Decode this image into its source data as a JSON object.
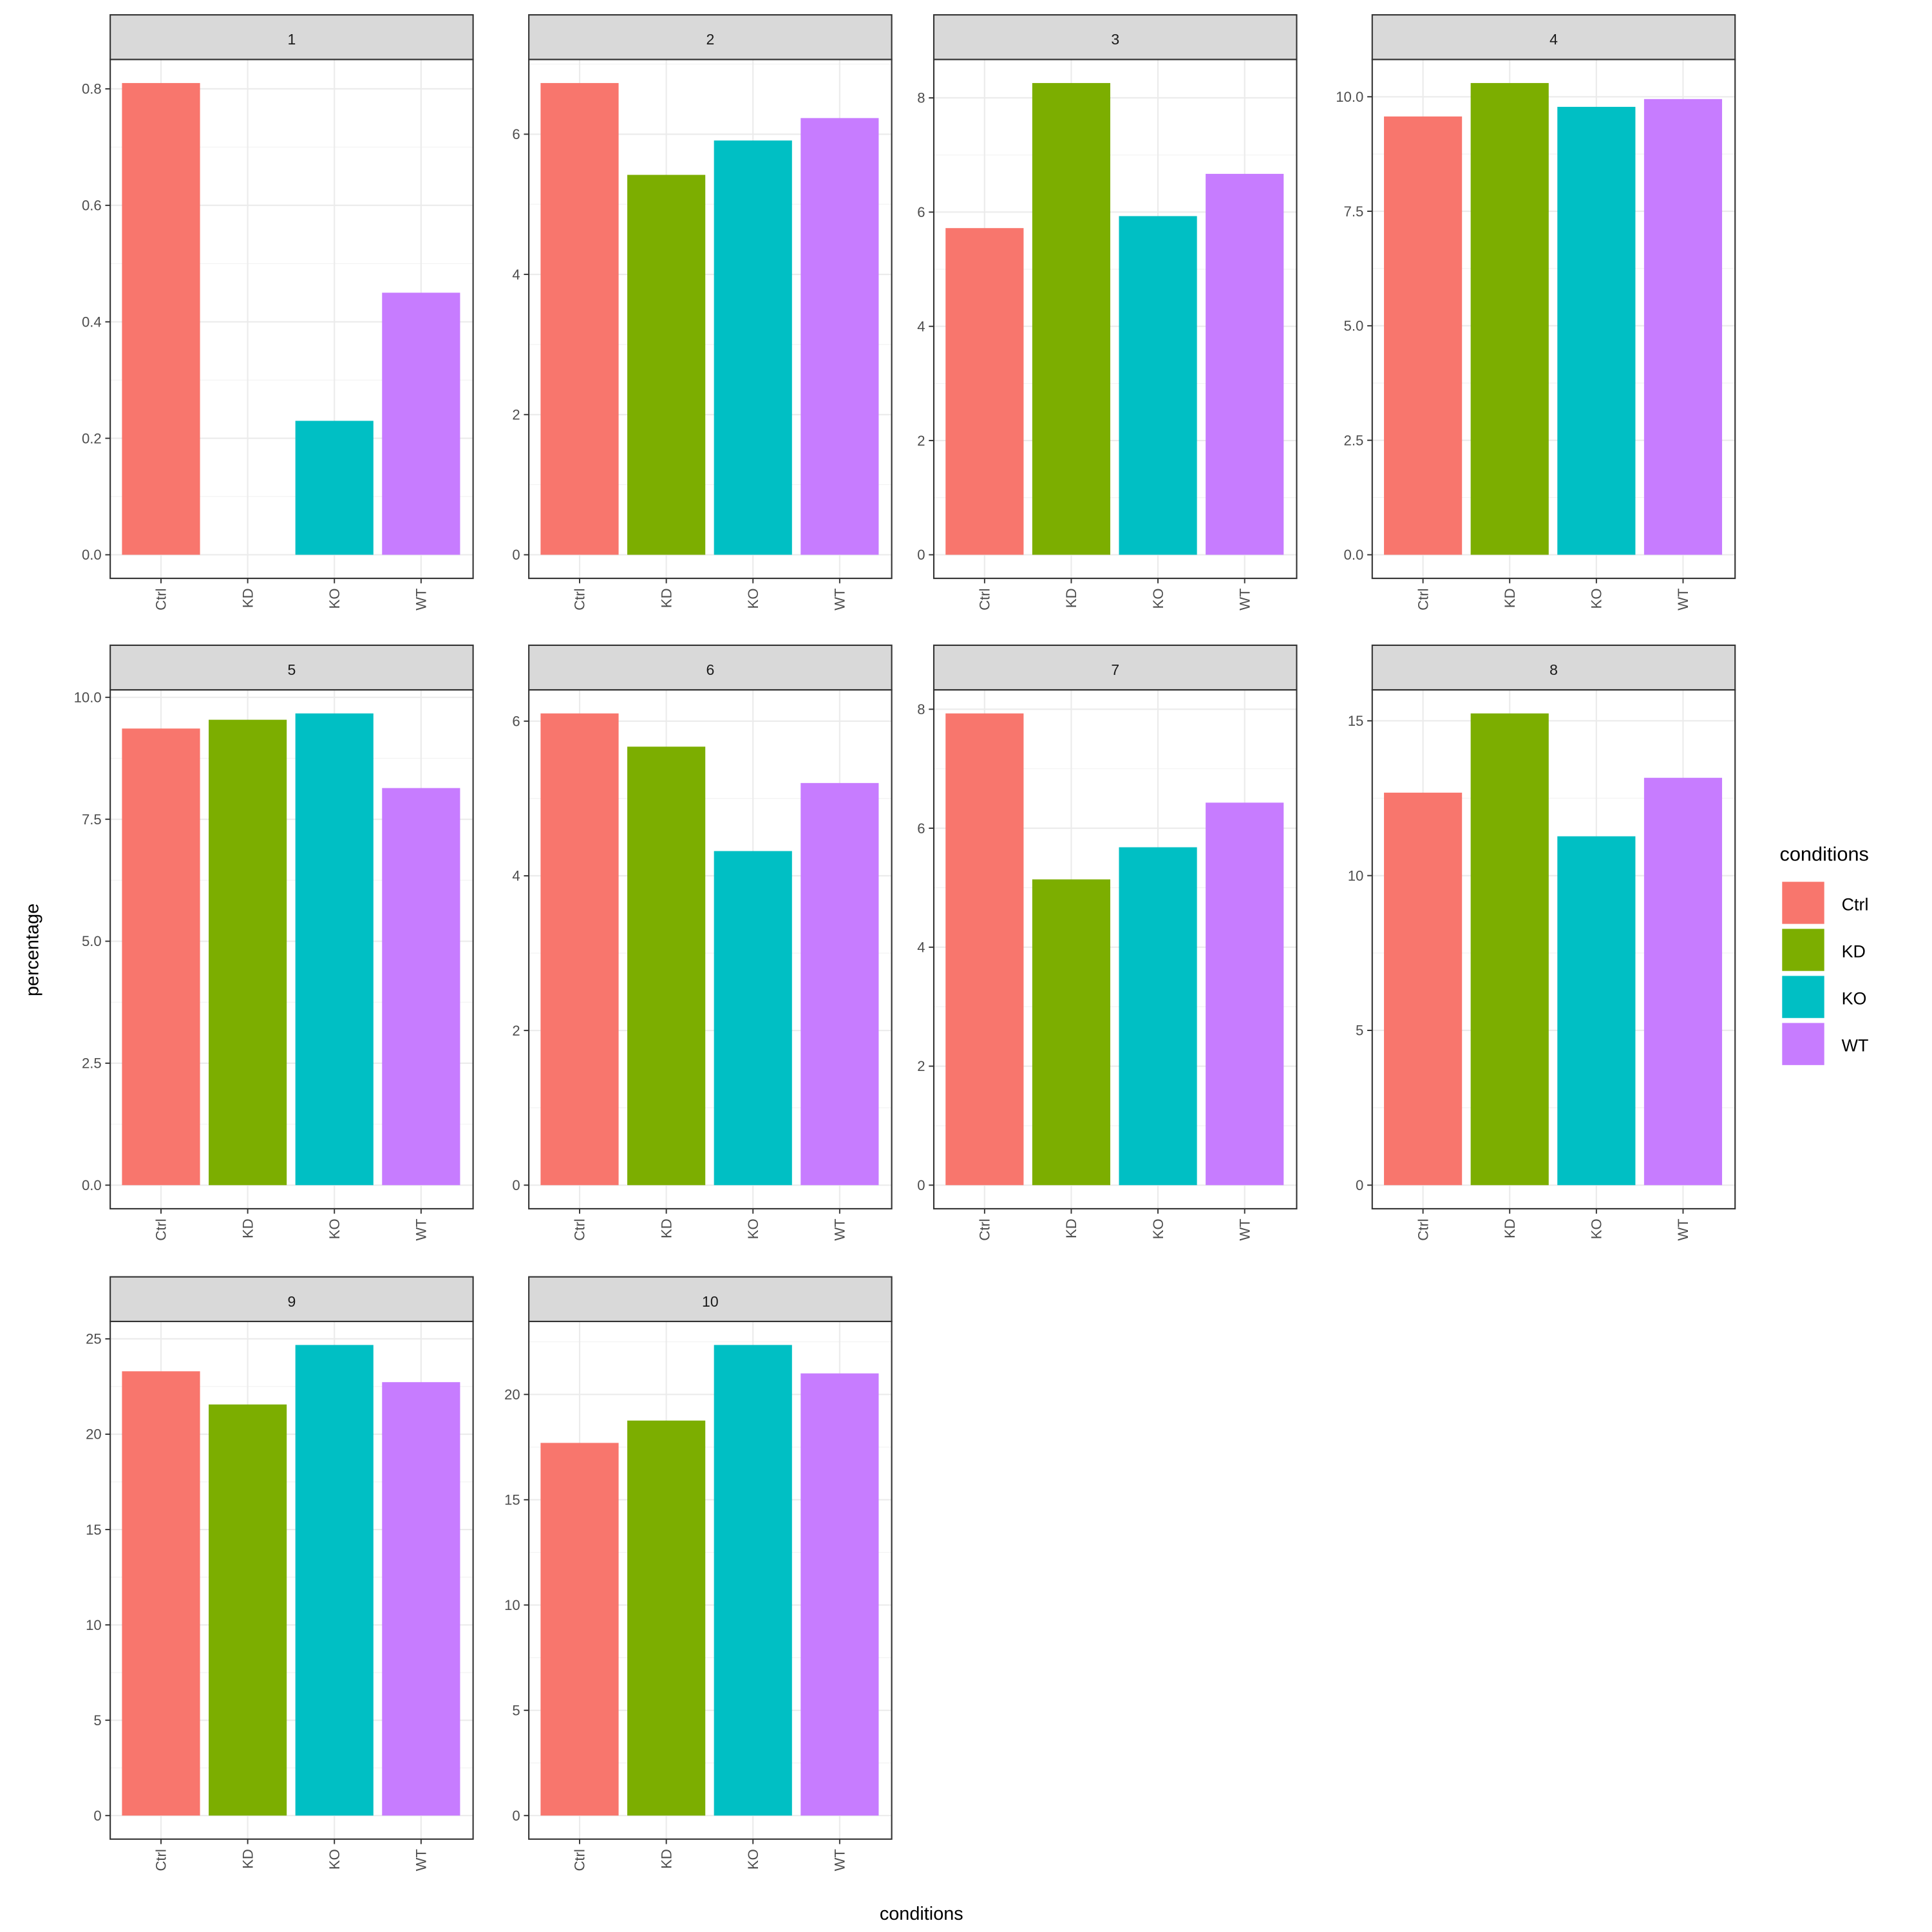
{
  "chart_data": {
    "type": "bar",
    "facet_by": "cluster",
    "xlabel": "conditions",
    "ylabel": "percentage",
    "categories": [
      "Ctrl",
      "KD",
      "KO",
      "WT"
    ],
    "colors": {
      "Ctrl": "#F8766D",
      "KD": "#7CAE00",
      "KO": "#00BFC4",
      "WT": "#C77CFF"
    },
    "legend": {
      "title": "conditions",
      "entries": [
        "Ctrl",
        "KD",
        "KO",
        "WT"
      ],
      "position": "right"
    },
    "grid": true,
    "panels": [
      {
        "label": "1",
        "values": [
          0.81,
          0,
          0.23,
          0.45
        ],
        "ticks": [
          0,
          0.2,
          0.4,
          0.6,
          0.8
        ],
        "tick_labels": [
          "0.0",
          "0.2",
          "0.4",
          "0.6",
          "0.8"
        ]
      },
      {
        "label": "2",
        "values": [
          6.73,
          5.42,
          5.91,
          6.23
        ],
        "ticks": [
          0,
          2,
          4,
          6
        ],
        "tick_labels": [
          "0",
          "2",
          "4",
          "6"
        ]
      },
      {
        "label": "3",
        "values": [
          5.72,
          8.26,
          5.93,
          6.67
        ],
        "ticks": [
          0,
          2,
          4,
          6,
          8
        ],
        "tick_labels": [
          "0",
          "2",
          "4",
          "6",
          "8"
        ]
      },
      {
        "label": "4",
        "values": [
          9.57,
          10.3,
          9.78,
          9.95
        ],
        "ticks": [
          0,
          2.5,
          5,
          7.5,
          10
        ],
        "tick_labels": [
          "0.0",
          "2.5",
          "5.0",
          "7.5",
          "10.0"
        ]
      },
      {
        "label": "5",
        "values": [
          9.36,
          9.54,
          9.67,
          8.14
        ],
        "ticks": [
          0,
          2.5,
          5,
          7.5,
          10
        ],
        "tick_labels": [
          "0.0",
          "2.5",
          "5.0",
          "7.5",
          "10.0"
        ]
      },
      {
        "label": "6",
        "values": [
          6.1,
          5.67,
          4.32,
          5.2
        ],
        "ticks": [
          0,
          2,
          4,
          6
        ],
        "tick_labels": [
          "0",
          "2",
          "4",
          "6"
        ]
      },
      {
        "label": "7",
        "values": [
          7.93,
          5.14,
          5.68,
          6.43
        ],
        "ticks": [
          0,
          2,
          4,
          6,
          8
        ],
        "tick_labels": [
          "0",
          "2",
          "4",
          "6",
          "8"
        ]
      },
      {
        "label": "8",
        "values": [
          12.68,
          15.24,
          11.27,
          13.16
        ],
        "ticks": [
          0,
          5,
          10,
          15
        ],
        "tick_labels": [
          "0",
          "5",
          "10",
          "15"
        ]
      },
      {
        "label": "9",
        "values": [
          23.3,
          21.56,
          24.68,
          22.73
        ],
        "ticks": [
          0,
          5,
          10,
          15,
          20,
          25
        ],
        "tick_labels": [
          "0",
          "5",
          "10",
          "15",
          "20",
          "25"
        ]
      },
      {
        "label": "10",
        "values": [
          17.7,
          18.76,
          22.35,
          21.0
        ],
        "ticks": [
          0,
          5,
          10,
          15,
          20
        ],
        "tick_labels": [
          "0",
          "5",
          "10",
          "15",
          "20"
        ]
      }
    ]
  }
}
